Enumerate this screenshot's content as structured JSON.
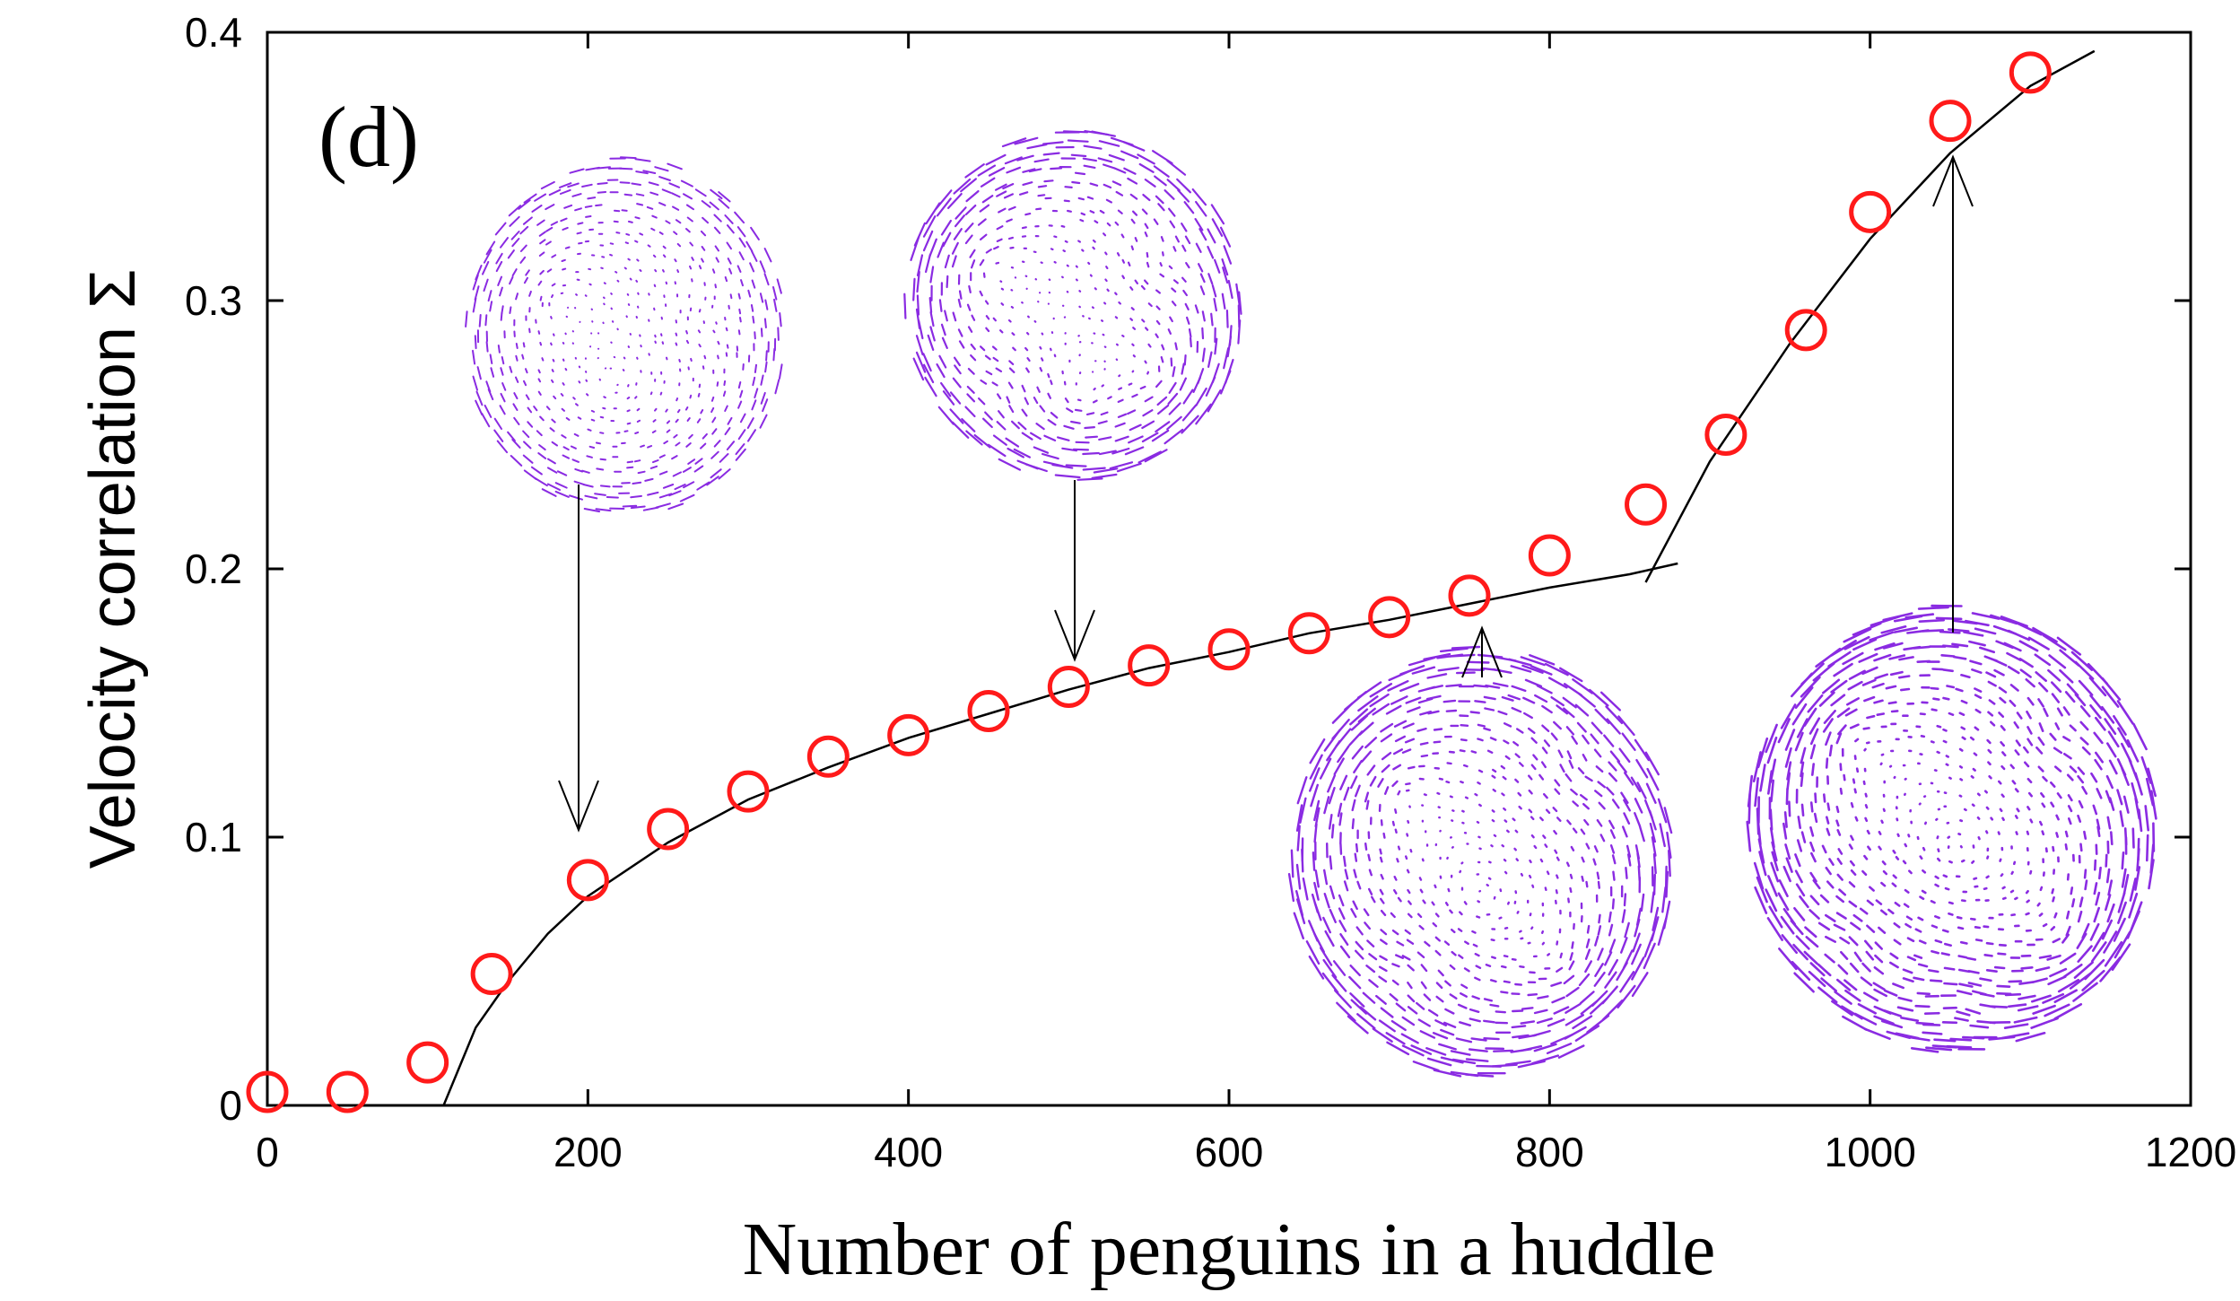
{
  "chart_data": {
    "type": "scatter",
    "panel_label": "(d)",
    "xlabel": "Number of penguins in a huddle",
    "ylabel": "Velocity correlation  Σ",
    "xlim": [
      0,
      1200
    ],
    "ylim": [
      0,
      0.4
    ],
    "x_ticks": [
      0,
      200,
      400,
      600,
      800,
      1000,
      1200
    ],
    "y_ticks": [
      0,
      0.1,
      0.2,
      0.3,
      0.4
    ],
    "x_tick_labels": [
      "0",
      "200",
      "400",
      "600",
      "800",
      "1000",
      "1200"
    ],
    "y_tick_labels": [
      "0",
      "0.1",
      "0.2",
      "0.3",
      "0.4"
    ],
    "marker": "open-circle",
    "marker_color": "#ff1a1a",
    "fit_line_color": "#000000",
    "inset_color": "#8a2be2",
    "series": [
      {
        "x": [
          0,
          50,
          100,
          140,
          200,
          250,
          300,
          350,
          400,
          450,
          500,
          550,
          600,
          650,
          700,
          750,
          800,
          860,
          910,
          960,
          1000,
          1050,
          1100
        ],
        "y": [
          0.005,
          0.005,
          0.016,
          0.049,
          0.084,
          0.103,
          0.117,
          0.13,
          0.138,
          0.147,
          0.156,
          0.164,
          0.17,
          0.176,
          0.182,
          0.19,
          0.205,
          0.224,
          0.25,
          0.289,
          0.333,
          0.367,
          0.385
        ]
      }
    ],
    "fit_curve": {
      "x": [
        110,
        130,
        150,
        175,
        200,
        250,
        300,
        350,
        400,
        450,
        500,
        550,
        600,
        650,
        700,
        750,
        800,
        850,
        880
      ],
      "y": [
        0.0,
        0.029,
        0.046,
        0.064,
        0.078,
        0.098,
        0.114,
        0.126,
        0.137,
        0.146,
        0.155,
        0.163,
        0.169,
        0.176,
        0.181,
        0.187,
        0.193,
        0.198,
        0.202
      ]
    },
    "fit_line": {
      "x": [
        860,
        900,
        950,
        1000,
        1050,
        1100,
        1140
      ],
      "y": [
        0.195,
        0.24,
        0.284,
        0.323,
        0.355,
        0.38,
        0.393
      ]
    },
    "insets": [
      {
        "target_x": 195,
        "target_y": 0.1,
        "direction": "down"
      },
      {
        "target_x": 505,
        "target_y": 0.16,
        "direction": "down"
      },
      {
        "target_x": 755,
        "target_y": 0.18,
        "direction": "up"
      },
      {
        "target_x": 1055,
        "target_y": 0.35,
        "direction": "up"
      }
    ]
  }
}
